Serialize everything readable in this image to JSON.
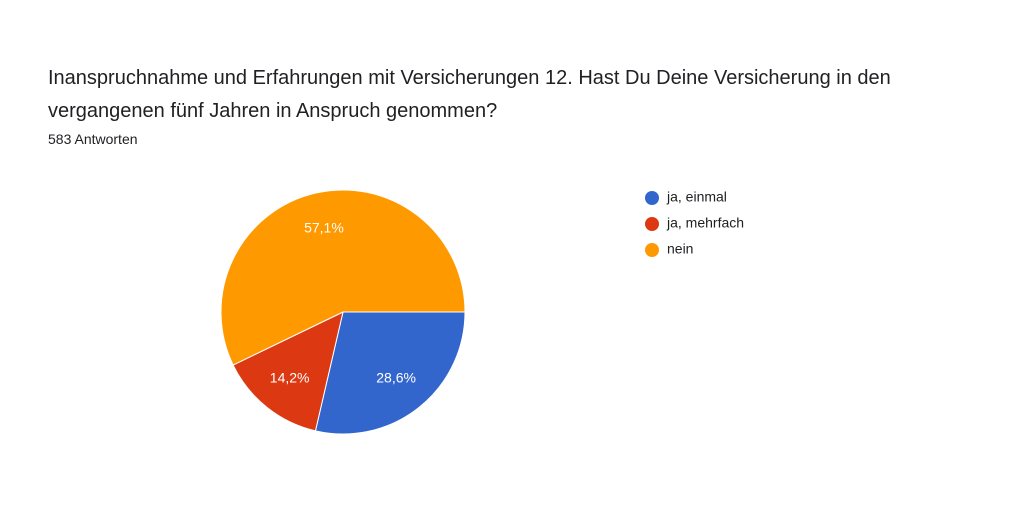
{
  "chart_data": {
    "type": "pie",
    "title": "Inanspruchnahme und Erfahrungen mit Versicherungen 12. Hast Du Deine Versicherung in den vergangenen fünf Jahren in Anspruch genommen?",
    "subtitle": "583 Antworten",
    "categories": [
      "ja, einmal",
      "ja, mehrfach",
      "nein"
    ],
    "values": [
      28.6,
      14.2,
      57.1
    ],
    "value_labels": [
      "28,6%",
      "14,2%",
      "57,1%"
    ],
    "colors": [
      "#3366cc",
      "#dc3912",
      "#ff9900"
    ],
    "legend": "right"
  }
}
